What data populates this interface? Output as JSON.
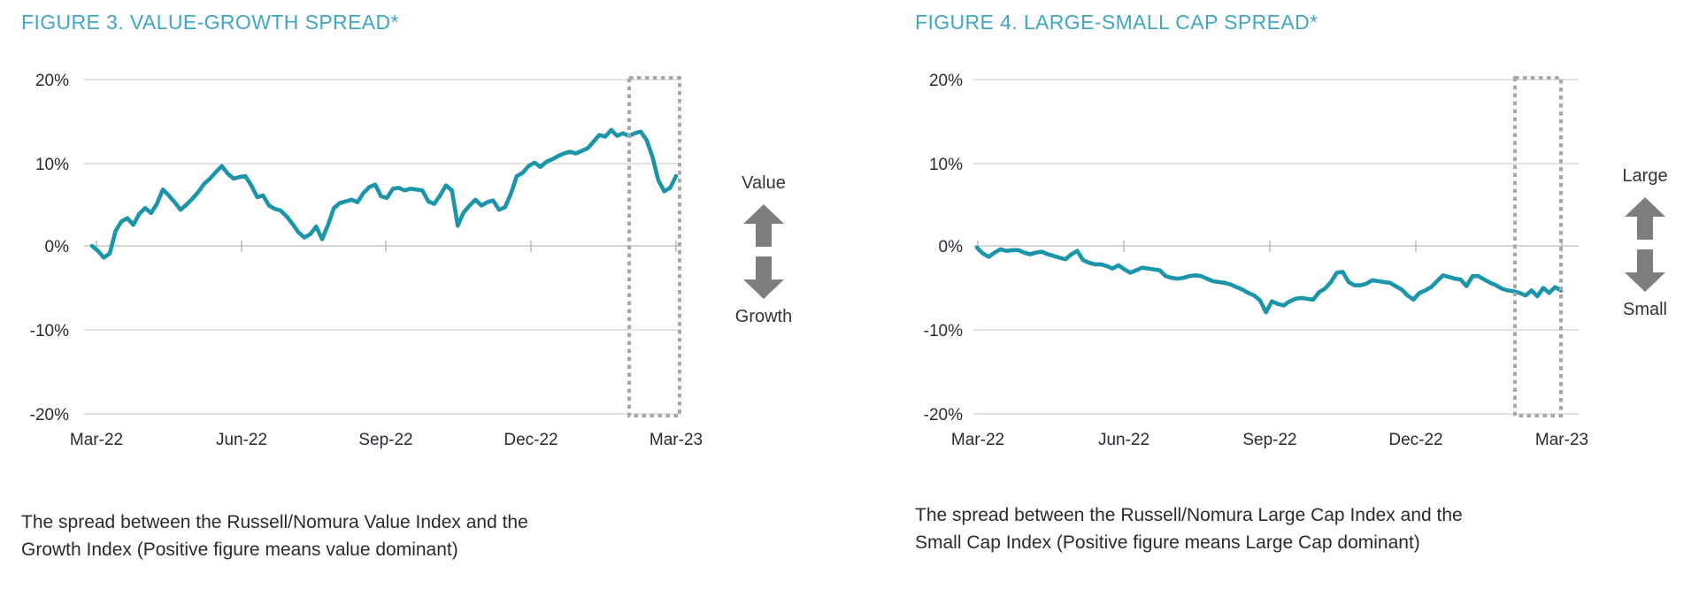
{
  "page": {
    "background": "#FFFFFF",
    "kind": "research report figure pair"
  },
  "colors": {
    "title": "#3FA6C6",
    "line": "#1B95AA",
    "grid": "#D8D8D8",
    "zero_axis": "#C6C6C6",
    "tick": "#B8B8B8",
    "axis_text": "#2A2A31",
    "caption_text": "#2B2B2B",
    "arrow": "#7E7E7E",
    "highlight_box": "#A6A6A6"
  },
  "figures": [
    {
      "title": "FIGURE 3. VALUE-GROWTH SPREAD*",
      "annotation": {
        "top_label": "Value",
        "bottom_label": "Growth"
      },
      "caption_line1": "The spread between the Russell/Nomura Value Index and the",
      "caption_line2": "Growth Index (Positive figure means value dominant)"
    },
    {
      "title": "FIGURE 4. LARGE-SMALL CAP SPREAD*",
      "annotation": {
        "top_label": "Large",
        "bottom_label": "Small"
      },
      "caption_line1": "The spread between the Russell/Nomura Large Cap Index and the",
      "caption_line2": "Small Cap Index (Positive figure means Large Cap dominant)"
    }
  ],
  "chart_data": [
    {
      "type": "line",
      "title": "FIGURE 3. VALUE-GROWTH SPREAD*",
      "x_tick_labels": [
        "Mar-22",
        "Jun-22",
        "Sep-22",
        "Dec-22",
        "Mar-23"
      ],
      "y_tick_labels": [
        "20%",
        "10%",
        "0%",
        "-10%",
        "-20%"
      ],
      "ylim": [
        -20,
        20
      ],
      "unit": "percent",
      "grid": "horizontal",
      "legend": "none",
      "annotation_note": "dashed box highlights most recent period before Mar-23",
      "series": [
        {
          "name": "Value-Growth spread",
          "values": [
            0.0,
            -0.6,
            -1.4,
            -0.9,
            1.8,
            2.9,
            3.3,
            2.5,
            3.8,
            4.5,
            3.9,
            5.0,
            6.7,
            6.0,
            5.2,
            4.3,
            4.9,
            5.6,
            6.4,
            7.4,
            8.0,
            8.8,
            9.5,
            8.6,
            8.0,
            8.2,
            8.3,
            7.2,
            5.8,
            6.0,
            4.8,
            4.4,
            4.2,
            3.5,
            2.6,
            1.6,
            1.0,
            1.4,
            2.3,
            0.8,
            2.5,
            4.5,
            5.1,
            5.3,
            5.5,
            5.2,
            6.3,
            7.0,
            7.3,
            5.9,
            5.7,
            6.8,
            6.9,
            6.6,
            6.8,
            6.7,
            6.6,
            5.3,
            5.0,
            6.0,
            7.2,
            6.6,
            2.4,
            4.0,
            4.8,
            5.5,
            4.8,
            5.2,
            5.4,
            4.3,
            4.6,
            6.2,
            8.3,
            8.7,
            9.5,
            9.9,
            9.4,
            10.0,
            10.3,
            10.7,
            11.0,
            11.2,
            11.0,
            11.3,
            11.6,
            12.4,
            13.2,
            13.0,
            13.8,
            13.1,
            13.4,
            13.1,
            13.4,
            13.6,
            12.6,
            10.6,
            7.8,
            6.5,
            6.9,
            8.3
          ]
        }
      ]
    },
    {
      "type": "line",
      "title": "FIGURE 4. LARGE-SMALL CAP SPREAD*",
      "x_tick_labels": [
        "Mar-22",
        "Jun-22",
        "Sep-22",
        "Dec-22",
        "Mar-23"
      ],
      "y_tick_labels": [
        "20%",
        "10%",
        "0%",
        "-10%",
        "-20%"
      ],
      "ylim": [
        -20,
        20
      ],
      "unit": "percent",
      "grid": "horizontal",
      "legend": "none",
      "annotation_note": "dashed box highlights most recent period before Mar-23",
      "series": [
        {
          "name": "Large-Small cap spread",
          "values": [
            -0.2,
            -0.9,
            -1.3,
            -0.8,
            -0.4,
            -0.6,
            -0.5,
            -0.5,
            -0.8,
            -1.0,
            -0.8,
            -0.7,
            -1.0,
            -1.2,
            -1.4,
            -1.6,
            -1.0,
            -0.6,
            -1.7,
            -2.0,
            -2.2,
            -2.2,
            -2.4,
            -2.7,
            -2.3,
            -2.8,
            -3.2,
            -2.9,
            -2.6,
            -2.7,
            -2.8,
            -2.9,
            -3.6,
            -3.8,
            -3.9,
            -3.8,
            -3.6,
            -3.5,
            -3.6,
            -3.9,
            -4.2,
            -4.3,
            -4.4,
            -4.6,
            -4.9,
            -5.2,
            -5.6,
            -5.9,
            -6.5,
            -7.9,
            -6.6,
            -6.9,
            -7.1,
            -6.6,
            -6.3,
            -6.2,
            -6.3,
            -6.4,
            -5.5,
            -5.1,
            -4.3,
            -3.2,
            -3.1,
            -4.3,
            -4.7,
            -4.7,
            -4.5,
            -4.1,
            -4.2,
            -4.3,
            -4.4,
            -4.8,
            -5.2,
            -5.9,
            -6.4,
            -5.6,
            -5.3,
            -4.9,
            -4.2,
            -3.5,
            -3.7,
            -3.9,
            -4.0,
            -4.8,
            -3.6,
            -3.6,
            -4.0,
            -4.4,
            -4.7,
            -5.1,
            -5.3,
            -5.4,
            -5.6,
            -5.9,
            -5.3,
            -6.0,
            -5.0,
            -5.6,
            -4.9,
            -5.3
          ]
        }
      ]
    }
  ]
}
